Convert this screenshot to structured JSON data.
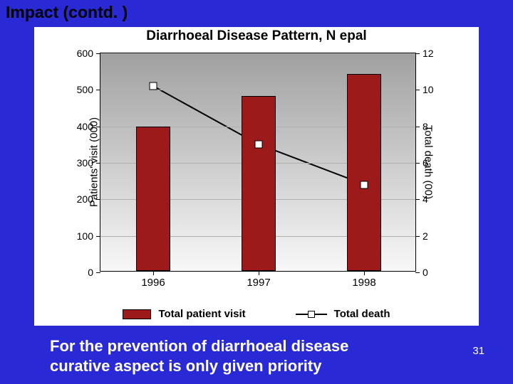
{
  "slide_title": "Impact (contd. )",
  "slide_number": "31",
  "caption_l1": "For the prevention of diarrhoeal disease",
  "caption_l2": "curative aspect is only given priority",
  "chart": {
    "title": "Diarrhoeal Disease Pattern, N epal",
    "type": "bar+line-dual-axis",
    "categories": [
      "1996",
      "1997",
      "1998"
    ],
    "bars": {
      "label": "Total patient visit",
      "values": [
        395,
        480,
        540
      ],
      "color": "#9c1a1a",
      "width_frac": 0.11
    },
    "line": {
      "label": "Total death",
      "values": [
        10.2,
        7.0,
        4.8
      ],
      "color": "#000000",
      "marker": "square",
      "marker_fill": "#ffffff",
      "line_width": 2
    },
    "left_axis": {
      "label": "Patients' visit (000)",
      "min": 0,
      "max": 600,
      "step": 100,
      "ticks": [
        0,
        100,
        200,
        300,
        400,
        500,
        600
      ]
    },
    "right_axis": {
      "label": "Total death (00)",
      "min": 0,
      "max": 12,
      "step": 2,
      "ticks": [
        0,
        2,
        4,
        6,
        8,
        10,
        12
      ]
    },
    "background_gradient": [
      "#a0a0a0",
      "#f8f8f8"
    ],
    "grid_color": "#b0b0b0",
    "font_family": "Arial",
    "axis_fontsize": 14,
    "label_fontsize": 15,
    "title_fontsize": 19
  }
}
